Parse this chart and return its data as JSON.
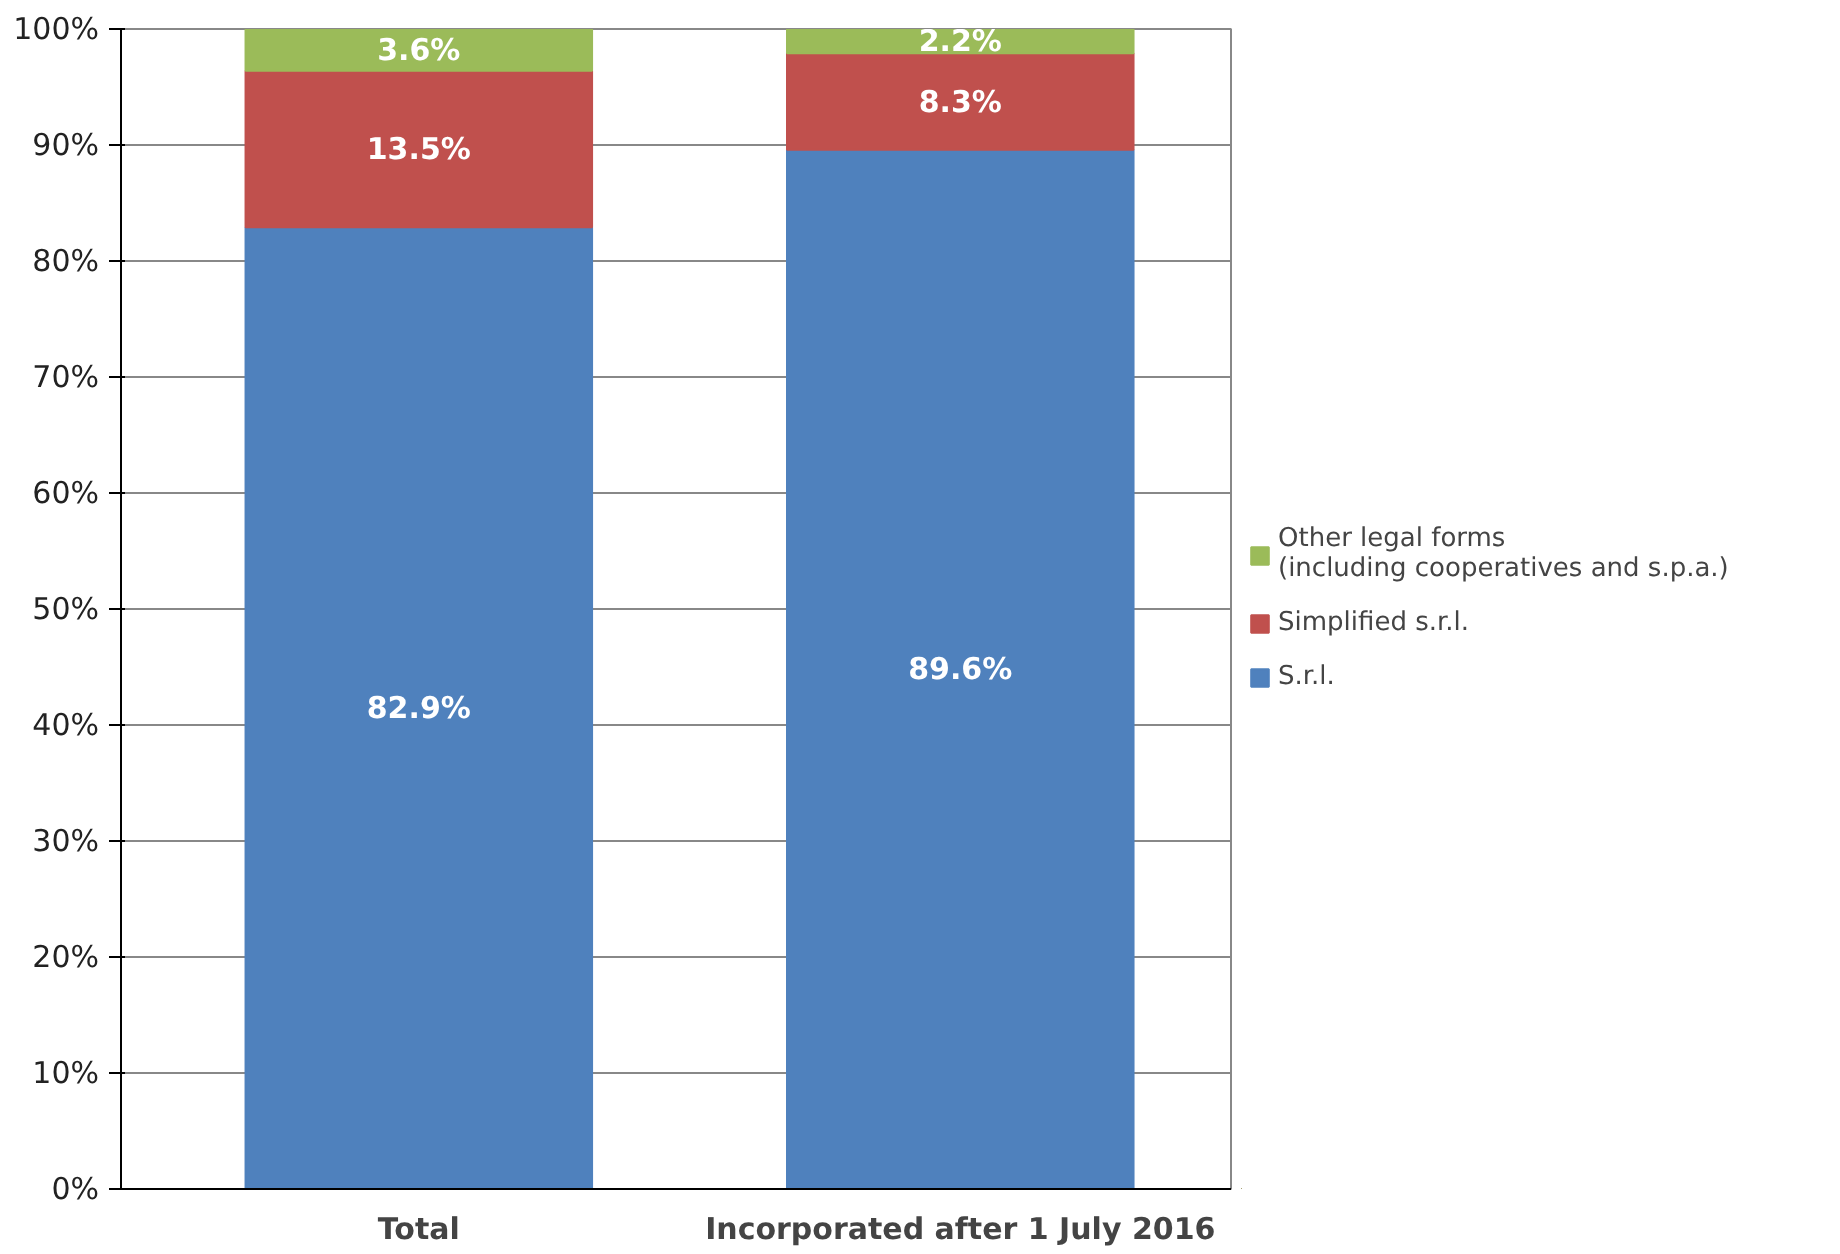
{
  "chart_data": {
    "type": "bar",
    "stacked": true,
    "categories": [
      "Total",
      "Incorporated after 1 July 2016"
    ],
    "series": [
      {
        "name": "S.r.l.",
        "color": "#4f81bd",
        "values": [
          82.9,
          89.6
        ],
        "value_labels": [
          "82.9%",
          "89.6%"
        ]
      },
      {
        "name": "Simplified s.r.l.",
        "color": "#c0504d",
        "values": [
          13.5,
          8.3
        ],
        "value_labels": [
          "13.5%",
          "8.3%"
        ]
      },
      {
        "name": "Other legal forms\n(including cooperatives and s.p.a.)",
        "color": "#9bbb59",
        "values": [
          3.6,
          2.2
        ],
        "value_labels": [
          "3.6%",
          "2.2%"
        ]
      }
    ],
    "ylim": [
      0,
      100
    ],
    "yticks": [
      {
        "value": 0,
        "label": "0%"
      },
      {
        "value": 10,
        "label": "10%"
      },
      {
        "value": 20,
        "label": "20%"
      },
      {
        "value": 30,
        "label": "30%"
      },
      {
        "value": 40,
        "label": "40%"
      },
      {
        "value": 50,
        "label": "50%"
      },
      {
        "value": 60,
        "label": "60%"
      },
      {
        "value": 70,
        "label": "70%"
      },
      {
        "value": 80,
        "label": "80%"
      },
      {
        "value": 90,
        "label": "90%"
      },
      {
        "value": 100,
        "label": "100%"
      }
    ],
    "grid": "y",
    "legend": "right"
  }
}
